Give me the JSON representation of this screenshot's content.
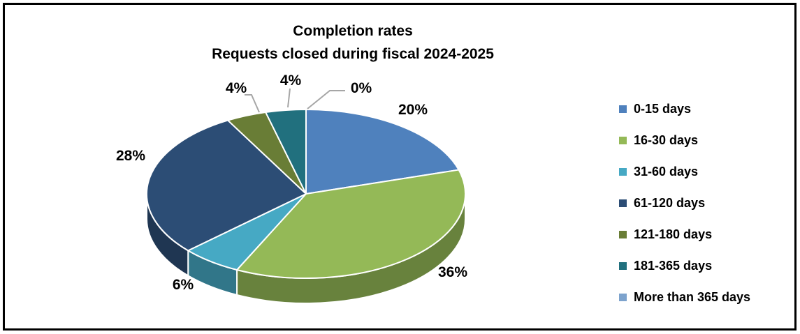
{
  "title": {
    "line1": "Completion rates",
    "line2": "Requests closed during fiscal 2024-2025"
  },
  "chart_data": {
    "type": "pie",
    "title": "Completion rates — Requests closed during fiscal 2024-2025",
    "effect": "3d",
    "legend_position": "right",
    "unit": "percent",
    "categories": [
      "0-15 days",
      "16-30 days",
      "31-60 days",
      "61-120 days",
      "121-180 days",
      "181-365 days",
      "More than 365 days"
    ],
    "values": [
      20,
      36,
      6,
      28,
      4,
      4,
      0
    ],
    "data_labels": [
      "20%",
      "36%",
      "6%",
      "28%",
      "4%",
      "4%",
      "0%"
    ],
    "colors": [
      "#4F81BD",
      "#94B957",
      "#46A9C4",
      "#2C4D75",
      "#697D36",
      "#21707E",
      "#7DA3CD"
    ],
    "leader_line_color": "#A6A6A6",
    "label_color": "#000000",
    "background_color": "#FFFFFF",
    "border_color": "#000000"
  }
}
